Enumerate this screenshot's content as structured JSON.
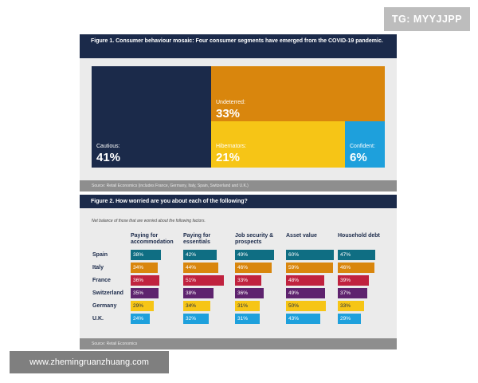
{
  "badge": "TG: MYYJJPP",
  "watermark": "www.zhemingruanzhuang.com",
  "colors": {
    "navy": "#1b2a4a",
    "orange": "#d9860d",
    "yellow": "#f6c516",
    "blue": "#1ea0dc",
    "teal": "#0f6e83",
    "crimson": "#c0223f",
    "purple": "#5e236e"
  },
  "chart_data": [
    {
      "type": "treemap",
      "title": "Figure 1. Consumer behaviour mosaic: Four consumer segments have emerged from the COVID-19 pandemic.",
      "source": "Source: Retail Economics (includes France, Germany, Italy, Spain, Switzerland and U.K.)",
      "segments": [
        {
          "name": "Cautious:",
          "value": 41,
          "label": "41%"
        },
        {
          "name": "Undeterred:",
          "value": 33,
          "label": "33%"
        },
        {
          "name": "Hibernators:",
          "value": 21,
          "label": "21%"
        },
        {
          "name": "Confident:",
          "value": 6,
          "label": "6%"
        }
      ]
    },
    {
      "type": "table",
      "title": "Figure 2. How worried are you about each of the following?",
      "note": "Net balance of those that are worried about the following factors.",
      "source": "Source: Retail Economics",
      "columns": [
        "Paying for accommodation",
        "Paying for essentials",
        "Job security & prospects",
        "Asset value",
        "Household debt"
      ],
      "rows": [
        {
          "country": "Spain",
          "values": [
            38,
            42,
            49,
            60,
            47
          ],
          "labels": [
            "38%",
            "42%",
            "49%",
            "60%",
            "47%"
          ]
        },
        {
          "country": "Italy",
          "values": [
            34,
            44,
            46,
            59,
            46
          ],
          "labels": [
            "34%",
            "44%",
            "46%",
            "59%",
            "46%"
          ]
        },
        {
          "country": "France",
          "values": [
            36,
            51,
            33,
            48,
            39
          ],
          "labels": [
            "36%",
            "51%",
            "33%",
            "48%",
            "39%"
          ]
        },
        {
          "country": "Switzerland",
          "values": [
            35,
            38,
            36,
            49,
            37
          ],
          "labels": [
            "35%",
            "38%",
            "36%",
            "49%",
            "37%"
          ]
        },
        {
          "country": "Germany",
          "values": [
            29,
            34,
            31,
            50,
            33
          ],
          "labels": [
            "29%",
            "34%",
            "31%",
            "50%",
            "33%"
          ]
        },
        {
          "country": "U.K.",
          "values": [
            24,
            32,
            31,
            43,
            29
          ],
          "labels": [
            "24%",
            "32%",
            "31%",
            "43%",
            "29%"
          ]
        }
      ]
    }
  ]
}
